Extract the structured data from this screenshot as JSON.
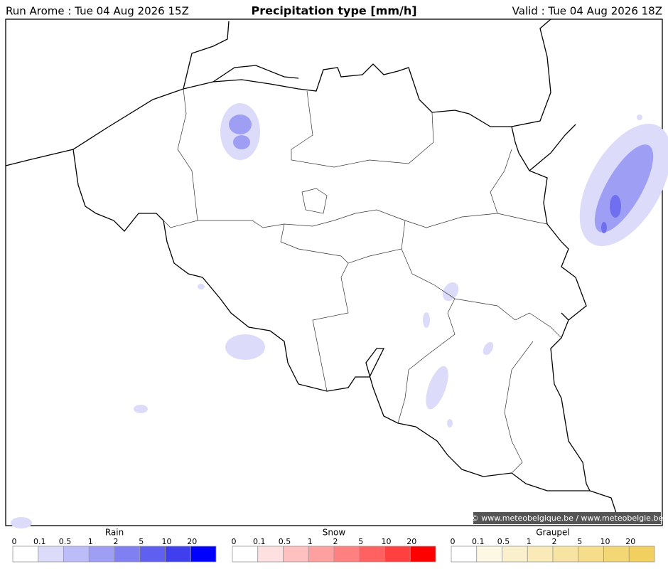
{
  "header": {
    "run": "Run Arome : Tue 04 Aug 2026 15Z",
    "title": "Precipitation type [mm/h]",
    "valid": "Valid : Tue 04 Aug 2026 18Z"
  },
  "credit": "© www.meteobelgique.be / www.meteobelgie.be",
  "legends": [
    {
      "title": "Rain",
      "ticks": [
        "0",
        "0.1",
        "0.5",
        "1",
        "2",
        "5",
        "10",
        "20"
      ],
      "colors": [
        "#ffffff",
        "#dcdcfa",
        "#bcbcf8",
        "#9e9ef5",
        "#8080f2",
        "#5f5ff0",
        "#3f3fee",
        "#0000ff"
      ]
    },
    {
      "title": "Snow",
      "ticks": [
        "0",
        "0.1",
        "0.5",
        "1",
        "2",
        "5",
        "10",
        "20"
      ],
      "colors": [
        "#ffffff",
        "#ffe0e0",
        "#ffc0c0",
        "#ffa0a0",
        "#ff8080",
        "#ff6060",
        "#ff4040",
        "#ff0000"
      ]
    },
    {
      "title": "Graupel",
      "ticks": [
        "0",
        "0.1",
        "0.5",
        "1",
        "2",
        "5",
        "10",
        "20"
      ],
      "colors": [
        "#ffffff",
        "#fcf8e4",
        "#faf0cc",
        "#f9eab8",
        "#f7e4a2",
        "#f5dd8c",
        "#f3d775",
        "#f2d060"
      ]
    }
  ]
}
